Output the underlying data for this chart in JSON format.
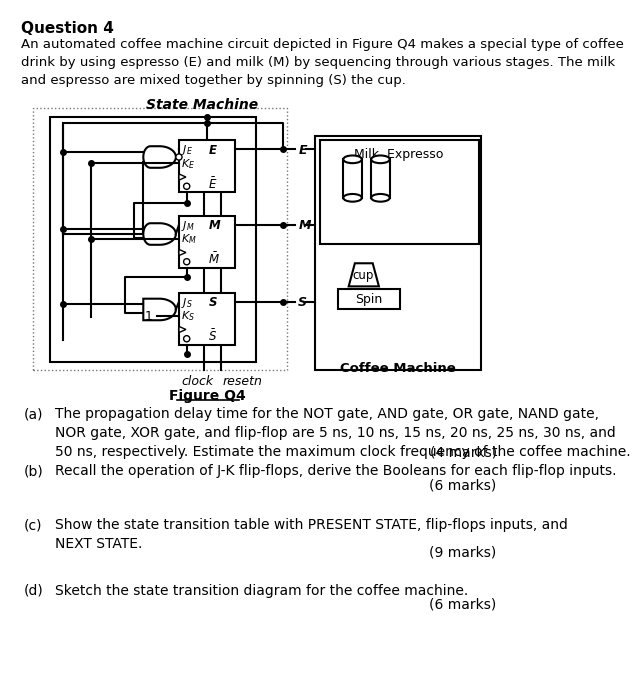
{
  "title": "Question 4",
  "intro_text": "An automated coffee machine circuit depicted in Figure Q4 makes a special type of coffee\ndrink by using espresso (E) and milk (M) by sequencing through various stages. The milk\nand espresso are mixed together by spinning (S) the cup.",
  "figure_title": "State Machine",
  "figure_label": "Figure Q4",
  "coffee_machine_label": "Coffee Machine",
  "questions": [
    {
      "label": "(a)",
      "text": "The propagation delay time for the NOT gate, AND gate, OR gate, NAND gate,\nNOR gate, XOR gate, and flip-flop are 5 ns, 10 ns, 15 ns, 20 ns, 25 ns, 30 ns, and\n50 ns, respectively. Estimate the maximum clock frequency of the coffee machine.",
      "marks": "(4 marks)"
    },
    {
      "label": "(b)",
      "text": "Recall the operation of J-K flip-flops, derive the Booleans for each flip-flop inputs.",
      "marks": "(6 marks)"
    },
    {
      "label": "(c)",
      "text": "Show the state transition table with PRESENT STATE, flip-flops inputs, and\nNEXT STATE.",
      "marks": "(9 marks)"
    },
    {
      "label": "(d)",
      "text": "Sketch the state transition diagram for the coffee machine.",
      "marks": "(6 marks)"
    }
  ],
  "bg_color": "#ffffff",
  "text_color": "#000000"
}
